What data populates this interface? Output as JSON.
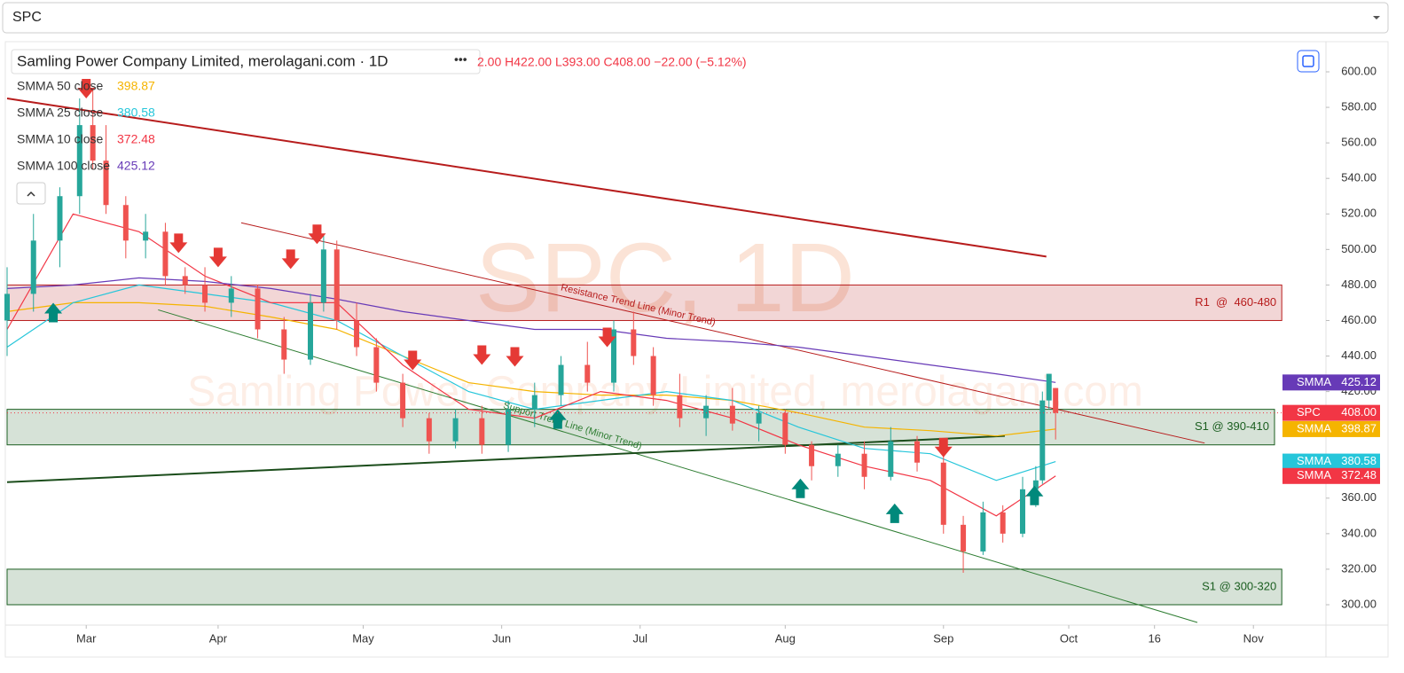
{
  "symbol_select": "SPC",
  "chart_data": {
    "type": "candlestick",
    "title": "Samling Power Company Limited, merolagani.com · 1D",
    "ohlc_text": "2.00 H422.00 L393.00 C408.00 −22.00 (−5.12%)",
    "watermark": "SPC, 1D",
    "watermark_sub": "Samling Power Company Limited, merolagani.com",
    "up_color": "#26a69a",
    "down_color": "#ef5350",
    "xlim": [
      0,
      200
    ],
    "xticks": [
      {
        "value": 12,
        "label": "Mar"
      },
      {
        "value": 32,
        "label": "Apr"
      },
      {
        "value": 54,
        "label": "May"
      },
      {
        "value": 75,
        "label": "Jun"
      },
      {
        "value": 96,
        "label": "Jul"
      },
      {
        "value": 118,
        "label": "Aug"
      },
      {
        "value": 142,
        "label": "Sep"
      },
      {
        "value": 161,
        "label": "Oct"
      },
      {
        "value": 174,
        "label": "16"
      },
      {
        "value": 189,
        "label": "Nov"
      }
    ],
    "ylim": [
      300,
      600
    ],
    "yticks": [
      {
        "value": 300,
        "label": "300.00"
      },
      {
        "value": 320,
        "label": "320.00"
      },
      {
        "value": 340,
        "label": "340.00"
      },
      {
        "value": 360,
        "label": "360.00"
      },
      {
        "value": 380,
        "label": "380.00"
      },
      {
        "value": 400,
        "label": "400.00"
      },
      {
        "value": 420,
        "label": "420.00"
      },
      {
        "value": 440,
        "label": "440.00"
      },
      {
        "value": 460,
        "label": "460.00"
      },
      {
        "value": 480,
        "label": "480.00"
      },
      {
        "value": 500,
        "label": "500.00"
      },
      {
        "value": 520,
        "label": "520.00"
      },
      {
        "value": 540,
        "label": "540.00"
      },
      {
        "value": 560,
        "label": "560.00"
      },
      {
        "value": 580,
        "label": "580.00"
      },
      {
        "value": 600,
        "label": "600.00"
      }
    ],
    "candles": {
      "x": [
        0,
        4,
        8,
        11,
        13,
        15,
        18,
        21,
        24,
        27,
        30,
        34,
        38,
        42,
        46,
        48,
        50,
        53,
        56,
        60,
        64,
        68,
        72,
        76,
        80,
        84,
        88,
        92,
        95,
        98,
        102,
        106,
        110,
        114,
        118,
        122,
        126,
        130,
        134,
        138,
        142,
        145,
        148,
        151,
        154,
        156,
        157,
        158,
        159
      ],
      "open": [
        460,
        475,
        505,
        530,
        570,
        550,
        525,
        505,
        510,
        485,
        480,
        470,
        478,
        455,
        438,
        470,
        500,
        460,
        445,
        425,
        405,
        392,
        405,
        390,
        410,
        418,
        435,
        425,
        455,
        440,
        418,
        405,
        412,
        402,
        408,
        390,
        378,
        385,
        372,
        392,
        380,
        345,
        330,
        352,
        340,
        365,
        370,
        415,
        422
      ],
      "high": [
        490,
        520,
        535,
        585,
        590,
        570,
        530,
        520,
        515,
        490,
        490,
        485,
        480,
        462,
        475,
        508,
        505,
        470,
        450,
        430,
        408,
        410,
        412,
        415,
        425,
        440,
        448,
        460,
        465,
        445,
        430,
        418,
        422,
        412,
        410,
        392,
        390,
        392,
        400,
        395,
        385,
        350,
        358,
        356,
        372,
        378,
        420,
        430,
        422
      ],
      "low": [
        440,
        465,
        490,
        520,
        545,
        520,
        495,
        495,
        480,
        475,
        465,
        462,
        450,
        430,
        435,
        465,
        455,
        440,
        420,
        400,
        385,
        388,
        385,
        386,
        400,
        412,
        420,
        420,
        435,
        412,
        400,
        395,
        398,
        392,
        385,
        370,
        372,
        365,
        370,
        375,
        340,
        318,
        328,
        335,
        338,
        355,
        368,
        410,
        393
      ],
      "close": [
        475,
        505,
        530,
        570,
        550,
        525,
        505,
        510,
        485,
        480,
        470,
        478,
        455,
        438,
        470,
        500,
        460,
        445,
        425,
        405,
        392,
        405,
        390,
        410,
        418,
        435,
        425,
        455,
        440,
        418,
        405,
        412,
        402,
        408,
        390,
        378,
        385,
        372,
        392,
        380,
        345,
        330,
        352,
        340,
        365,
        370,
        415,
        430,
        408
      ]
    },
    "last_price": {
      "name": "SPC",
      "value": 408,
      "label": "408.00",
      "color": "#f23645"
    },
    "series": [
      {
        "name": "SMMA 50 close",
        "tag": "SMMA",
        "color": "#f5b400",
        "last": 398.87,
        "x": [
          0,
          10,
          20,
          30,
          40,
          50,
          60,
          70,
          80,
          90,
          100,
          110,
          120,
          130,
          140,
          150,
          159
        ],
        "values": [
          465,
          470,
          470,
          468,
          462,
          455,
          440,
          425,
          420,
          418,
          418,
          415,
          408,
          400,
          398,
          395,
          398.87
        ]
      },
      {
        "name": "SMMA 25 close",
        "tag": "SMMA",
        "color": "#26c6da",
        "last": 380.58,
        "x": [
          0,
          10,
          20,
          30,
          40,
          50,
          60,
          70,
          80,
          90,
          100,
          110,
          120,
          130,
          140,
          150,
          159
        ],
        "values": [
          445,
          470,
          480,
          475,
          470,
          460,
          440,
          420,
          410,
          415,
          420,
          415,
          400,
          388,
          385,
          370,
          380.58
        ]
      },
      {
        "name": "SMMA 10 close",
        "tag": "SMMA",
        "color": "#f23645",
        "last": 372.48,
        "x": [
          0,
          10,
          20,
          30,
          40,
          50,
          60,
          70,
          80,
          90,
          100,
          110,
          120,
          130,
          140,
          150,
          159
        ],
        "values": [
          455,
          520,
          510,
          485,
          470,
          470,
          435,
          410,
          405,
          420,
          415,
          405,
          390,
          378,
          370,
          350,
          372.48
        ]
      },
      {
        "name": "SMMA 100 close",
        "tag": "SMMA",
        "color": "#673ab7",
        "last": 425.12,
        "x": [
          0,
          10,
          20,
          30,
          40,
          50,
          60,
          70,
          80,
          90,
          100,
          110,
          120,
          130,
          140,
          150,
          159
        ],
        "values": [
          478,
          480,
          484,
          482,
          478,
          472,
          465,
          460,
          455,
          455,
          450,
          448,
          445,
          440,
          435,
          430,
          425.12
        ]
      }
    ],
    "zones": [
      {
        "label": "R1  @  460-480",
        "range": [
          460,
          480
        ],
        "x": [
          0,
          193.3
        ],
        "color": "#b71c1c"
      },
      {
        "label": "S1 @ 390-410",
        "range": [
          390,
          410
        ],
        "x": [
          0,
          192.2
        ],
        "color": "#1b5e20"
      },
      {
        "label": "S1 @ 300-320",
        "range": [
          300,
          320
        ],
        "x": [
          0,
          193.3
        ],
        "color": "#1b5e20"
      }
    ],
    "trend_lines": [
      {
        "x": [
          0,
          157.6
        ],
        "values": [
          585,
          496
        ],
        "color": "#b71c1c",
        "width": 2
      },
      {
        "label": "Resistance Trend Line (Minor Trend)",
        "x": [
          35.5,
          181.6
        ],
        "values": [
          515,
          391
        ],
        "color": "#b71c1c",
        "width": 1
      },
      {
        "label": "Support Trend Line (Minor Trend)",
        "x": [
          22.9,
          180.5
        ],
        "values": [
          466,
          290
        ],
        "color": "#2e7d32",
        "width": 1
      },
      {
        "x": [
          0,
          151.3
        ],
        "values": [
          369,
          395
        ],
        "color": "#1b4d1b",
        "width": 2
      }
    ],
    "down_arrows": {
      "x": [
        12,
        26,
        32,
        43,
        47,
        61.5,
        72,
        77,
        91,
        142
      ],
      "values": [
        590,
        503,
        495,
        494,
        508,
        437,
        440,
        439,
        450,
        388
      ],
      "color": "#e53935"
    },
    "up_arrows": {
      "x": [
        7,
        83.5,
        120.3,
        134.6,
        155.8
      ],
      "values": [
        465,
        405,
        366,
        352,
        362
      ],
      "color": "#00897b"
    }
  }
}
